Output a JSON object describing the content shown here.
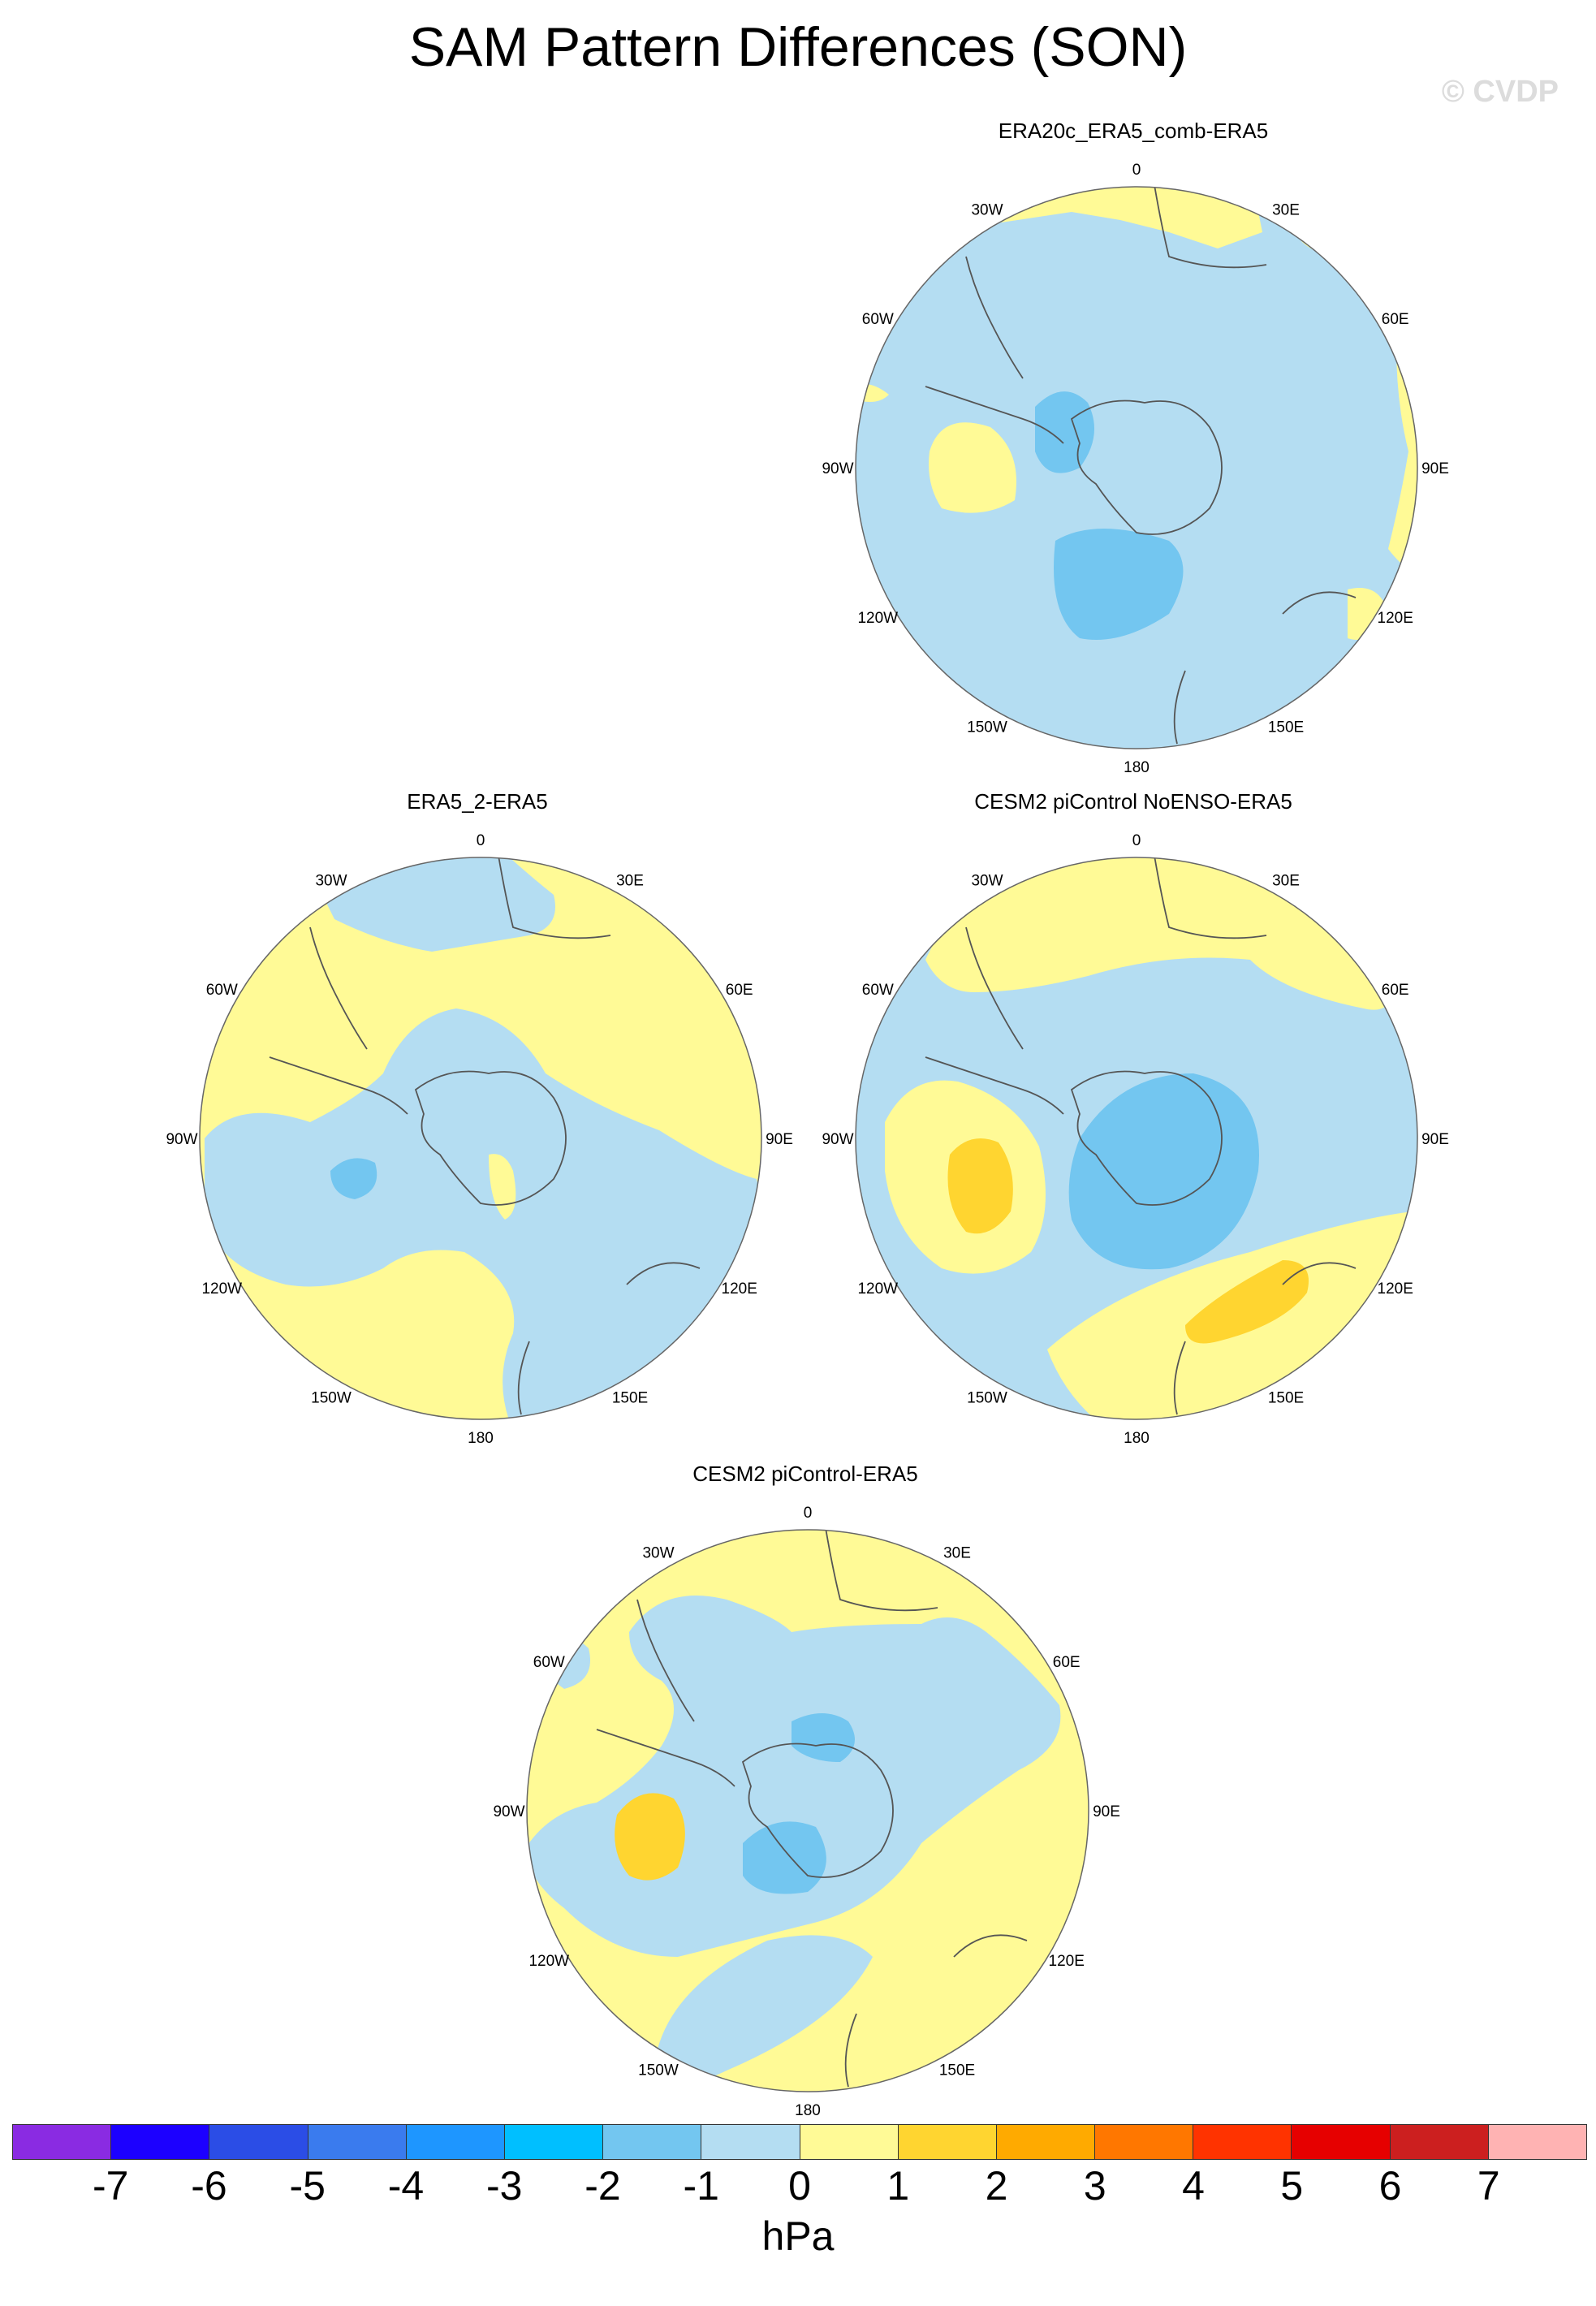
{
  "title": "SAM Pattern Differences (SON)",
  "watermark": "© CVDP",
  "lon_labels": [
    "0",
    "30E",
    "60E",
    "90E",
    "120E",
    "150E",
    "180",
    "150W",
    "120W",
    "90W",
    "60W",
    "30W"
  ],
  "colors": {
    "ocean_neg": "#b4ddf2",
    "neg2": "#73c6f0",
    "pos1": "#fffa96",
    "pos2": "#ffd530",
    "coast": "#555555",
    "rim": "#666666"
  },
  "panels": [
    {
      "id": "p1",
      "title": "ERA20c_ERA5_comb-ERA5"
    },
    {
      "id": "p2",
      "title": "ERA5_2-ERA5"
    },
    {
      "id": "p3",
      "title": "CESM2 piControl NoENSO-ERA5"
    },
    {
      "id": "p4",
      "title": "CESM2 piControl-ERA5"
    }
  ],
  "colorbar": {
    "colors": [
      "#8a2be2",
      "#1c00ff",
      "#2b4de6",
      "#3a7bee",
      "#1e96ff",
      "#00bfff",
      "#73c6f0",
      "#b4ddf2",
      "#fffa96",
      "#ffd530",
      "#ffaa00",
      "#ff7700",
      "#ff3300",
      "#e60000",
      "#cc1f1f",
      "#ffb3b3"
    ],
    "ticks": [
      "-7",
      "-6",
      "-5",
      "-4",
      "-3",
      "-2",
      "-1",
      "0",
      "1",
      "2",
      "3",
      "4",
      "5",
      "6",
      "7"
    ],
    "units": "hPa"
  }
}
